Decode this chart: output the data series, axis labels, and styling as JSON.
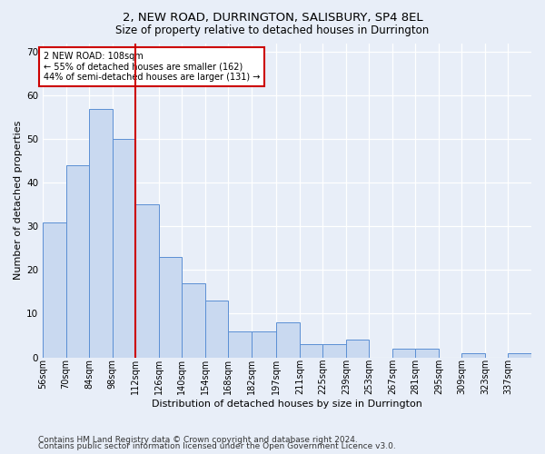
{
  "title": "2, NEW ROAD, DURRINGTON, SALISBURY, SP4 8EL",
  "subtitle": "Size of property relative to detached houses in Durrington",
  "xlabel": "Distribution of detached houses by size in Durrington",
  "ylabel": "Number of detached properties",
  "bar_labels": [
    "56sqm",
    "70sqm",
    "84sqm",
    "98sqm",
    "112sqm",
    "126sqm",
    "140sqm",
    "154sqm",
    "168sqm",
    "182sqm",
    "197sqm",
    "211sqm",
    "225sqm",
    "239sqm",
    "253sqm",
    "267sqm",
    "281sqm",
    "295sqm",
    "309sqm",
    "323sqm",
    "337sqm"
  ],
  "bar_values": [
    31,
    44,
    57,
    50,
    35,
    23,
    17,
    13,
    6,
    6,
    8,
    3,
    3,
    4,
    0,
    2,
    2,
    0,
    1,
    0,
    1
  ],
  "bar_edges": [
    56,
    70,
    84,
    98,
    112,
    126,
    140,
    154,
    168,
    182,
    197,
    211,
    225,
    239,
    253,
    267,
    281,
    295,
    309,
    323,
    337,
    351
  ],
  "bar_color": "#c9d9f0",
  "bar_edge_color": "#5b8fd4",
  "vline_x": 112,
  "vline_color": "#cc0000",
  "annotation_text": "2 NEW ROAD: 108sqm\n← 55% of detached houses are smaller (162)\n44% of semi-detached houses are larger (131) →",
  "annotation_box_color": "#ffffff",
  "annotation_box_edge": "#cc0000",
  "ylim": [
    0,
    72
  ],
  "yticks": [
    0,
    10,
    20,
    30,
    40,
    50,
    60,
    70
  ],
  "bg_color": "#e8eef8",
  "plot_bg_color": "#e8eef8",
  "footer_line1": "Contains HM Land Registry data © Crown copyright and database right 2024.",
  "footer_line2": "Contains public sector information licensed under the Open Government Licence v3.0.",
  "title_fontsize": 9.5,
  "subtitle_fontsize": 8.5,
  "xlabel_fontsize": 8,
  "ylabel_fontsize": 8,
  "tick_fontsize": 7,
  "ytick_fontsize": 7.5,
  "footer_fontsize": 6.5,
  "annotation_fontsize": 7
}
